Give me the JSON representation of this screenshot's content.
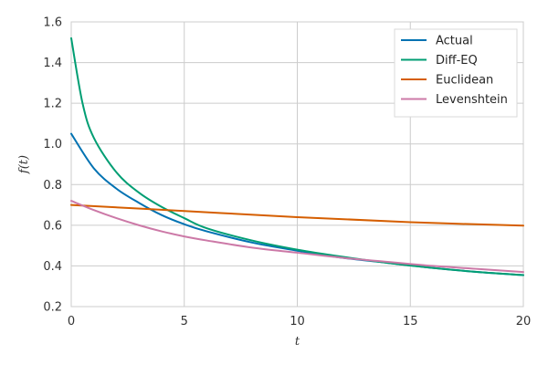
{
  "chart_data": {
    "type": "line",
    "title": "",
    "xlabel": "t",
    "ylabel": "f(t)",
    "xlim": [
      0,
      20
    ],
    "ylim": [
      0.2,
      1.6
    ],
    "xticks": [
      0,
      5,
      10,
      15,
      20
    ],
    "yticks": [
      0.2,
      0.4,
      0.6,
      0.8,
      1.0,
      1.2,
      1.4,
      1.6
    ],
    "xtick_labels": [
      "0",
      "5",
      "10",
      "15",
      "20"
    ],
    "ytick_labels": [
      "0.2",
      "0.4",
      "0.6",
      "0.8",
      "1.0",
      "1.2",
      "1.4",
      "1.6"
    ],
    "grid": true,
    "legend_position": "top-right",
    "series": [
      {
        "name": "Actual",
        "color": "#0072b2",
        "x": [
          0,
          1,
          2,
          3,
          4,
          5,
          6,
          8,
          10,
          12,
          14,
          16,
          18,
          20
        ],
        "y": [
          1.05,
          0.88,
          0.78,
          0.71,
          0.65,
          0.605,
          0.57,
          0.515,
          0.475,
          0.44,
          0.415,
          0.39,
          0.37,
          0.355
        ]
      },
      {
        "name": "Diff-EQ",
        "color": "#009e73",
        "x": [
          0,
          0.5,
          1,
          2,
          3,
          4,
          5,
          6,
          8,
          10,
          12,
          14,
          16,
          18,
          20
        ],
        "y": [
          1.52,
          1.2,
          1.03,
          0.86,
          0.76,
          0.69,
          0.635,
          0.585,
          0.525,
          0.48,
          0.445,
          0.415,
          0.39,
          0.37,
          0.355
        ]
      },
      {
        "name": "Euclidean",
        "color": "#d55e00",
        "x": [
          0,
          5,
          10,
          15,
          20
        ],
        "y": [
          0.7,
          0.67,
          0.64,
          0.615,
          0.598
        ]
      },
      {
        "name": "Levenshtein",
        "color": "#cc79a7",
        "x": [
          0,
          1,
          2,
          3,
          4,
          5,
          6,
          8,
          10,
          12,
          14,
          16,
          18,
          20
        ],
        "y": [
          0.72,
          0.675,
          0.635,
          0.6,
          0.57,
          0.545,
          0.525,
          0.49,
          0.465,
          0.44,
          0.42,
          0.4,
          0.385,
          0.37
        ]
      }
    ]
  }
}
